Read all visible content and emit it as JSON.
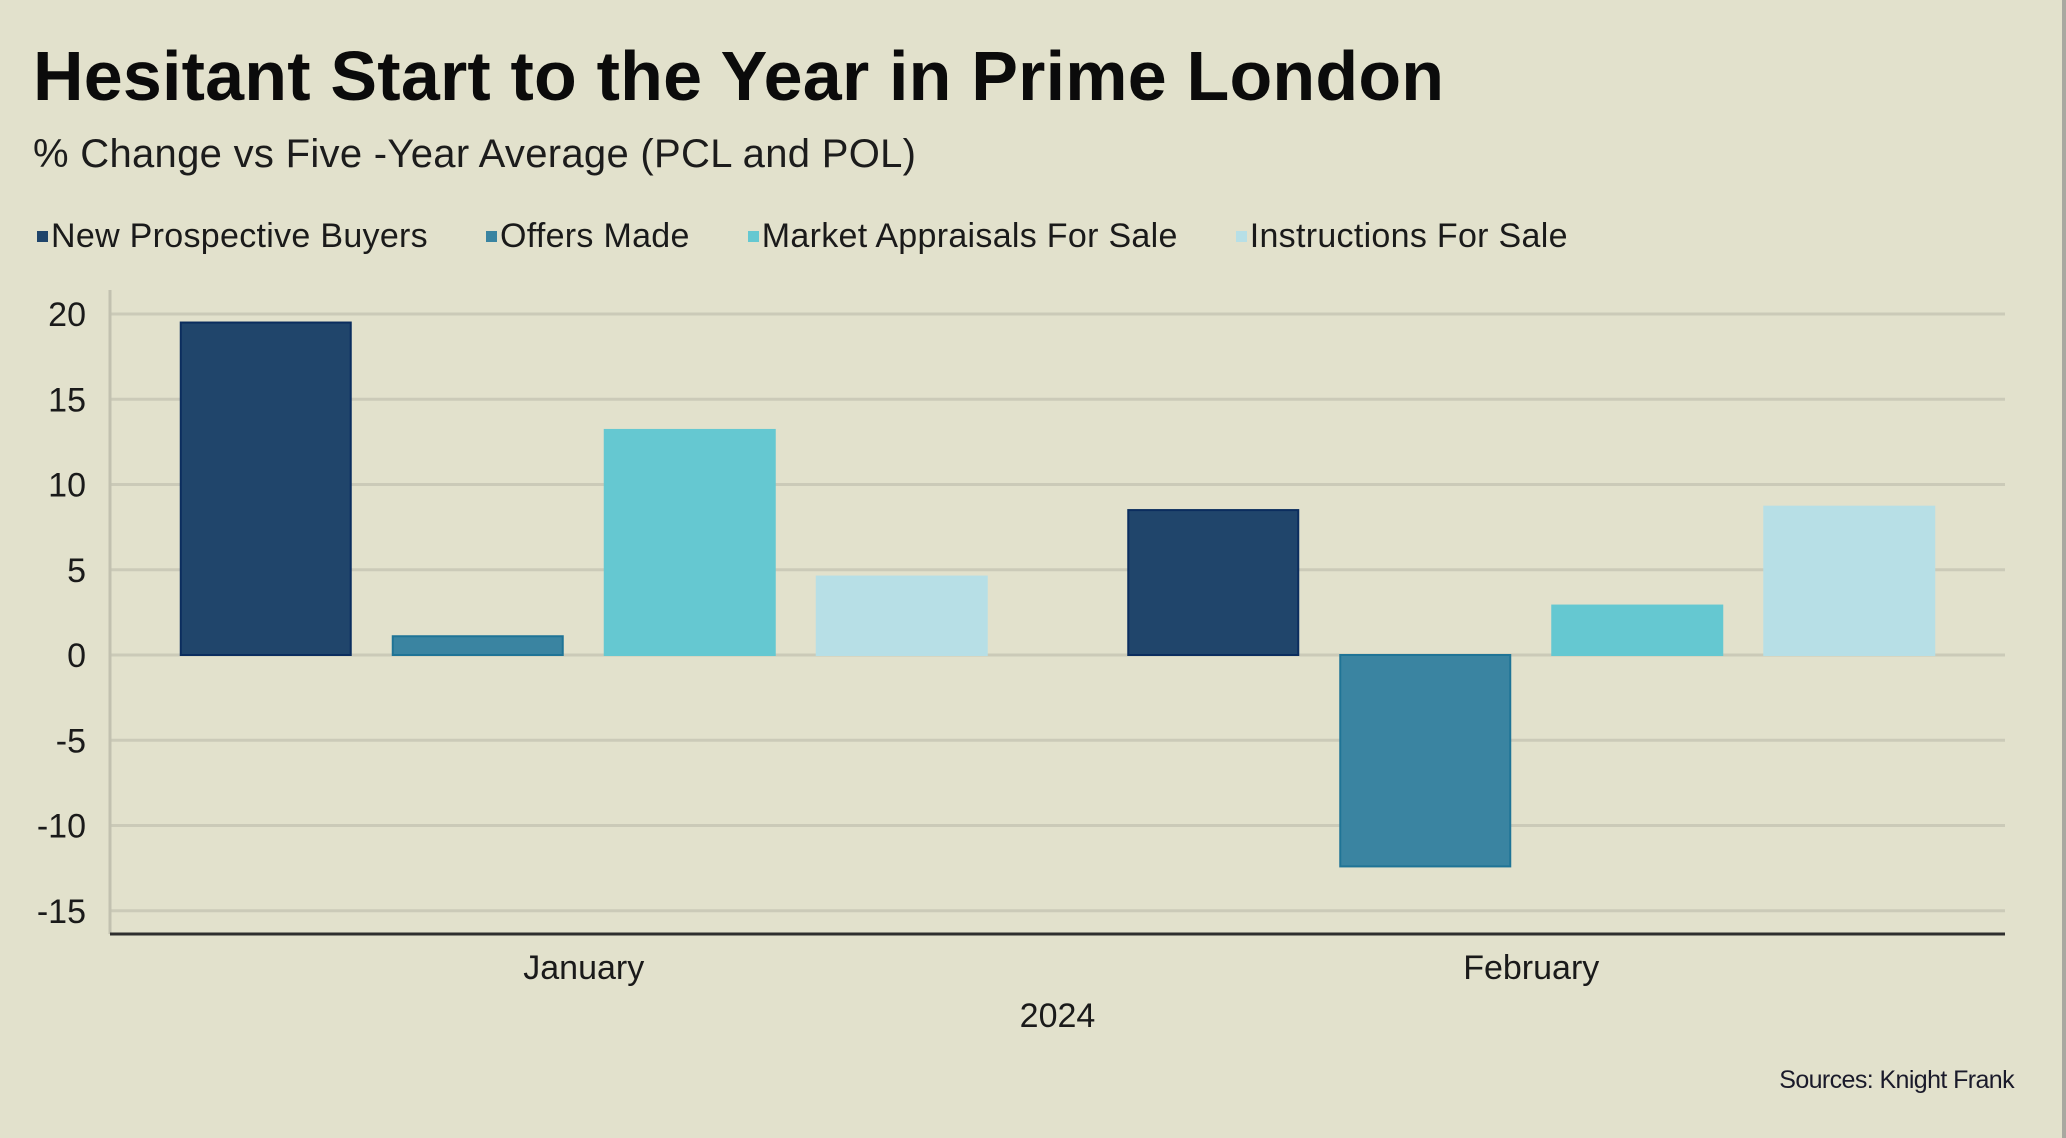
{
  "title": "Hesitant Start to the Year in Prime London",
  "subtitle": "% Change vs Five -Year Average (PCL and POL)",
  "source": "Sources: Knight Frank",
  "colors": {
    "background": "#E2E1CC",
    "gridline": "#CBCAB8",
    "axis": "#2E2E2E"
  },
  "chart_data": {
    "type": "bar",
    "title": "Hesitant Start to the Year in Prime London",
    "subtitle": "% Change vs Five -Year Average (PCL and POL)",
    "categories": [
      "January",
      "February"
    ],
    "xlabel": "2024",
    "ylabel": "",
    "ylim": [
      -16.3,
      21.4
    ],
    "yticks": [
      20,
      15,
      10,
      5,
      0,
      -5,
      -10,
      -15
    ],
    "grid": true,
    "legend_position": "top-left",
    "series": [
      {
        "name": "New Prospective Buyers",
        "color": "#20456B",
        "stroke": "#0B2D5E",
        "values": [
          19.5,
          8.5
        ]
      },
      {
        "name": "Offers Made",
        "color": "#3A84A1",
        "stroke": "#1F7496",
        "values": [
          1.1,
          -12.4
        ]
      },
      {
        "name": "Market Appraisals For Sale",
        "color": "#65C8D1",
        "stroke": "#65C8D1",
        "values": [
          13.2,
          2.9
        ]
      },
      {
        "name": "Instructions For Sale",
        "color": "#B7DFE6",
        "stroke": "#B7DFE6",
        "values": [
          4.6,
          8.7
        ]
      }
    ],
    "source": "Sources: Knight Frank"
  }
}
